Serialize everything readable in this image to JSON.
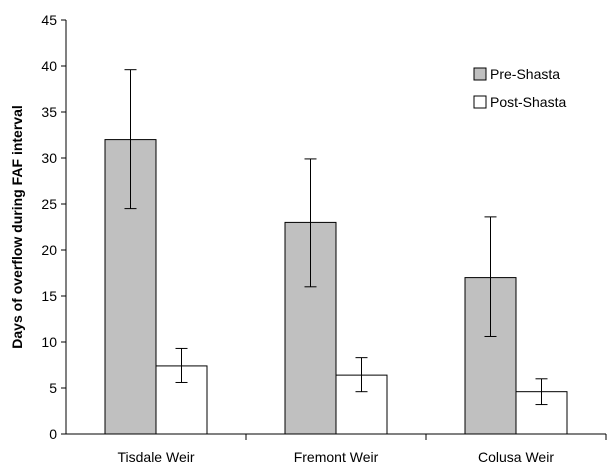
{
  "chart_data": {
    "type": "bar",
    "title": "",
    "xlabel": "",
    "ylabel": "Days of overflow during FAF interval",
    "ylim": [
      0,
      45
    ],
    "yticks": [
      0,
      5,
      10,
      15,
      20,
      25,
      30,
      35,
      40,
      45
    ],
    "grid": false,
    "legend_position": "top-right",
    "categories": [
      "Tisdale Weir",
      "Fremont Weir",
      "Colusa Weir"
    ],
    "series": [
      {
        "name": "Pre-Shasta",
        "color": "#c0c0c0",
        "values": [
          32,
          23,
          17
        ],
        "error_low": [
          24.5,
          16,
          10.6
        ],
        "error_high": [
          39.6,
          29.9,
          23.6
        ]
      },
      {
        "name": "Post-Shasta",
        "color": "#ffffff",
        "values": [
          7.4,
          6.4,
          4.6
        ],
        "error_low": [
          5.6,
          4.6,
          3.2
        ],
        "error_high": [
          9.3,
          8.3,
          6.0
        ]
      }
    ]
  }
}
